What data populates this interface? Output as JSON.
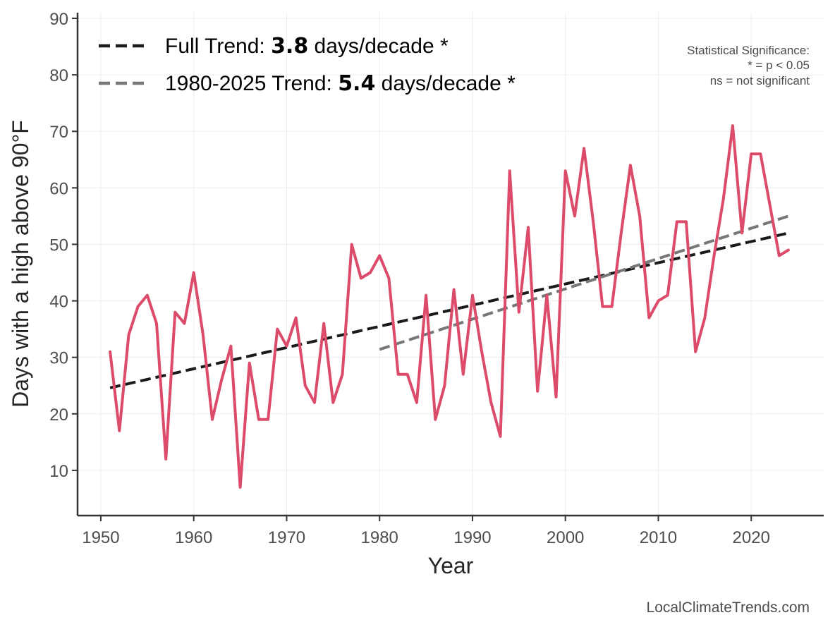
{
  "chart_data": {
    "type": "line",
    "xlabel": "Year",
    "ylabel": "Days with a high above 90°F",
    "xlim": [
      1947.5,
      2027.8
    ],
    "ylim": [
      2,
      91
    ],
    "x_ticks": [
      1950,
      1960,
      1970,
      1980,
      1990,
      2000,
      2010,
      2020
    ],
    "y_ticks": [
      10,
      20,
      30,
      40,
      50,
      60,
      70,
      80,
      90
    ],
    "grid": true,
    "series": [
      {
        "name": "Annual days above 90°F",
        "color": "#dc4b6a",
        "x": [
          1951,
          1952,
          1953,
          1954,
          1955,
          1956,
          1957,
          1958,
          1959,
          1960,
          1961,
          1962,
          1963,
          1964,
          1965,
          1966,
          1967,
          1968,
          1969,
          1970,
          1971,
          1972,
          1973,
          1974,
          1975,
          1976,
          1977,
          1978,
          1979,
          1980,
          1981,
          1982,
          1983,
          1984,
          1985,
          1986,
          1987,
          1988,
          1989,
          1990,
          1991,
          1992,
          1993,
          1994,
          1995,
          1996,
          1997,
          1998,
          1999,
          2000,
          2001,
          2002,
          2003,
          2004,
          2005,
          2006,
          2007,
          2008,
          2009,
          2010,
          2011,
          2012,
          2013,
          2014,
          2015,
          2016,
          2017,
          2018,
          2019,
          2020,
          2021,
          2022,
          2023,
          2024
        ],
        "y": [
          31,
          17,
          34,
          39,
          41,
          36,
          12,
          38,
          36,
          45,
          34,
          19,
          26,
          32,
          7,
          29,
          19,
          19,
          35,
          32,
          37,
          25,
          22,
          36,
          22,
          27,
          50,
          44,
          45,
          48,
          44,
          27,
          27,
          22,
          41,
          19,
          25,
          42,
          27,
          41,
          31,
          22,
          16,
          63,
          38,
          53,
          24,
          41,
          23,
          63,
          55,
          67,
          54,
          39,
          39,
          52,
          64,
          55,
          37,
          40,
          41,
          54,
          54,
          31,
          37,
          48,
          58,
          71,
          52,
          66,
          66,
          57,
          48,
          49
        ]
      }
    ],
    "trends": [
      {
        "name": "Full Trend",
        "label_prefix": "Full Trend: ",
        "rate": "3.8",
        "label_suffix": " days/decade *",
        "color": "#1a1a1a",
        "x": [
          1951,
          2024
        ],
        "y": [
          24.6,
          52.0
        ]
      },
      {
        "name": "1980-2025 Trend",
        "label_prefix": "1980-2025 Trend: ",
        "rate": "5.4",
        "label_suffix": " days/decade *",
        "color": "#777777",
        "x": [
          1980,
          2024
        ],
        "y": [
          31.4,
          55.0
        ]
      }
    ],
    "legend_position": "top-left",
    "annotations": {
      "significance": [
        "Statistical Significance:",
        "* = p < 0.05",
        "ns = not significant"
      ],
      "source": "LocalClimateTrends.com"
    }
  }
}
